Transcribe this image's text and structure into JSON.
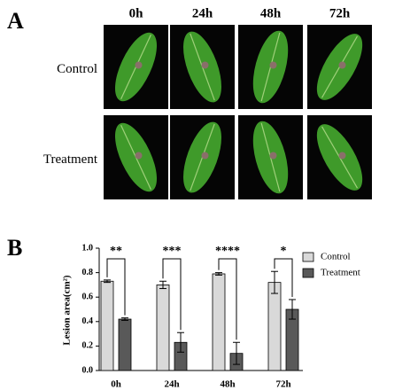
{
  "panel_a": {
    "label": "A",
    "columns": [
      "0h",
      "24h",
      "48h",
      "72h"
    ],
    "rows": [
      "Control",
      "Treatment"
    ]
  },
  "chart_data": {
    "type": "bar",
    "label": "B",
    "ylabel": "Lesion area(cm²)",
    "categories": [
      "0h",
      "24h",
      "48h",
      "72h"
    ],
    "series": [
      {
        "name": "Control",
        "color": "#d9d9d9",
        "values": [
          0.73,
          0.7,
          0.79,
          0.72
        ],
        "errors": [
          0.01,
          0.03,
          0.01,
          0.09
        ]
      },
      {
        "name": "Treatment",
        "color": "#595959",
        "values": [
          0.42,
          0.23,
          0.14,
          0.5
        ],
        "errors": [
          0.01,
          0.08,
          0.09,
          0.08
        ]
      }
    ],
    "significance": [
      "**",
      "***",
      "****",
      "*"
    ],
    "ylim": [
      0,
      1.0
    ],
    "yticks": [
      {
        "value": 0,
        "label": "0.0"
      },
      0.2,
      0.4,
      0.6,
      0.8,
      {
        "value": 1.0,
        "label": "1.0"
      }
    ]
  }
}
